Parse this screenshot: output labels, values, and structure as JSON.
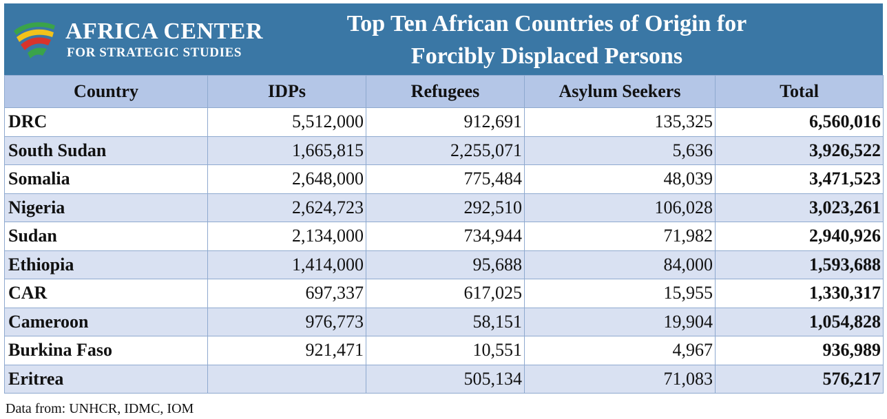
{
  "logo": {
    "name": "AFRICA CENTER",
    "subname": "FOR STRATEGIC STUDIES",
    "colors": {
      "green": "#3aa34a",
      "yellow": "#f2c21b",
      "red": "#d9342b"
    }
  },
  "title_line1": "Top Ten African Countries of Origin for",
  "title_line2": "Forcibly Displaced Persons",
  "source": "Data from: UNHCR, IDMC, IOM",
  "colors": {
    "header_bg": "#3a77a5",
    "column_header_bg": "#b4c6e7",
    "alt_row_bg": "#d9e1f2",
    "border": "#8ea9cf"
  },
  "chart_data": {
    "type": "table",
    "title": "Top Ten African Countries of Origin for Forcibly Displaced Persons",
    "columns": [
      "Country",
      "IDPs",
      "Refugees",
      "Asylum Seekers",
      "Total"
    ],
    "rows": [
      [
        "DRC",
        "5,512,000",
        "912,691",
        "135,325",
        "6,560,016"
      ],
      [
        "South Sudan",
        "1,665,815",
        "2,255,071",
        "5,636",
        "3,926,522"
      ],
      [
        "Somalia",
        "2,648,000",
        "775,484",
        "48,039",
        "3,471,523"
      ],
      [
        "Nigeria",
        "2,624,723",
        "292,510",
        "106,028",
        "3,023,261"
      ],
      [
        "Sudan",
        "2,134,000",
        "734,944",
        "71,982",
        "2,940,926"
      ],
      [
        "Ethiopia",
        "1,414,000",
        "95,688",
        "84,000",
        "1,593,688"
      ],
      [
        "CAR",
        "697,337",
        "617,025",
        "15,955",
        "1,330,317"
      ],
      [
        "Cameroon",
        "976,773",
        "58,151",
        "19,904",
        "1,054,828"
      ],
      [
        "Burkina Faso",
        "921,471",
        "10,551",
        "4,967",
        "936,989"
      ],
      [
        "Eritrea",
        "",
        "505,134",
        "71,083",
        "576,217"
      ]
    ]
  }
}
